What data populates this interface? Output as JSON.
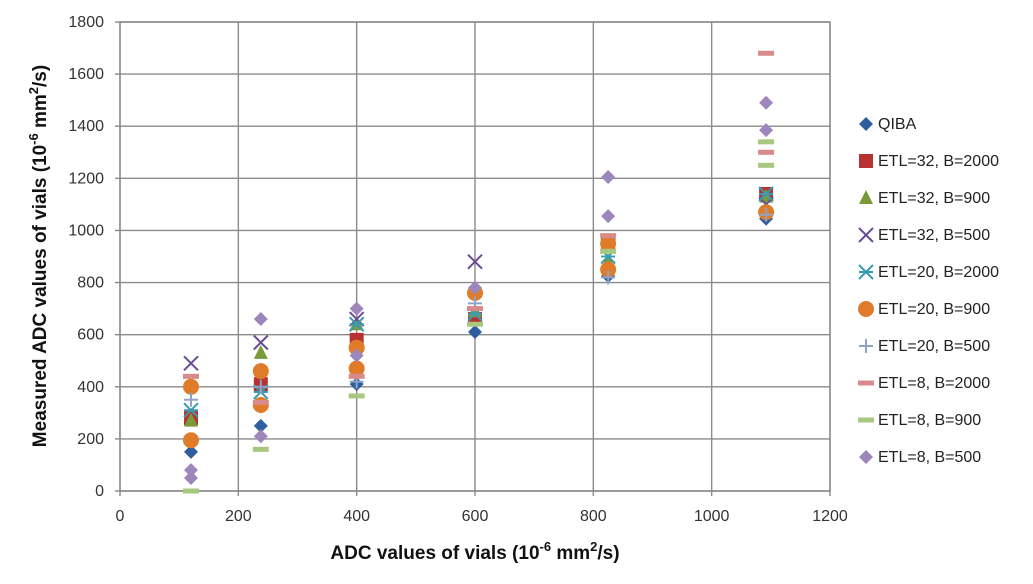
{
  "chart_data": {
    "type": "scatter",
    "xlabel": "ADC values of vials (10^-6 mm^2/s)",
    "xlabel_parts": {
      "pre": "ADC values of vials (10",
      "exp1": "-6",
      "mid": " mm",
      "exp2": "2",
      "post": "/s)"
    },
    "ylabel": "Measured ADC values of vials (10^-6 mm^2/s)",
    "ylabel_parts": {
      "pre": "Measured ADC values of vials (10",
      "exp1": "-6",
      "mid": " mm",
      "exp2": "2",
      "post": "/s)"
    },
    "xlim": [
      0,
      1200
    ],
    "ylim": [
      0,
      1800
    ],
    "xticks": [
      0,
      200,
      400,
      600,
      800,
      1000,
      1200
    ],
    "yticks": [
      0,
      200,
      400,
      600,
      800,
      1000,
      1200,
      1400,
      1600,
      1800
    ],
    "grid": true,
    "legend_position": "right",
    "series": [
      {
        "name": "QIBA",
        "marker": "diamond",
        "color": "#2E5E9E",
        "points": [
          [
            120,
            150
          ],
          [
            238,
            250
          ],
          [
            400,
            410
          ],
          [
            600,
            610
          ],
          [
            825,
            825
          ],
          [
            1092,
            1045
          ]
        ]
      },
      {
        "name": "ETL=32, B=2000",
        "marker": "square",
        "color": "#B83232",
        "points": [
          [
            120,
            280
          ],
          [
            238,
            410
          ],
          [
            400,
            580
          ],
          [
            600,
            660
          ],
          [
            825,
            950
          ],
          [
            1092,
            1140
          ]
        ]
      },
      {
        "name": "ETL=32, B=900",
        "marker": "triangle",
        "color": "#7A9A3A",
        "points": [
          [
            120,
            270
          ],
          [
            238,
            530
          ],
          [
            400,
            640
          ],
          [
            600,
            690
          ],
          [
            825,
            880
          ],
          [
            1092,
            1130
          ]
        ]
      },
      {
        "name": "ETL=32, B=500",
        "marker": "x",
        "color": "#6A4C93",
        "points": [
          [
            120,
            490
          ],
          [
            238,
            570
          ],
          [
            400,
            660
          ],
          [
            600,
            880
          ],
          [
            825,
            940
          ],
          [
            1092,
            1100
          ]
        ]
      },
      {
        "name": "ETL=20, B=2000",
        "marker": "asterisk",
        "color": "#3A9AB0",
        "points": [
          [
            120,
            310
          ],
          [
            238,
            380
          ],
          [
            400,
            640
          ],
          [
            600,
            680
          ],
          [
            825,
            900
          ],
          [
            1092,
            1140
          ]
        ]
      },
      {
        "name": "ETL=20, B=900",
        "marker": "circle",
        "color": "#E07B2A",
        "points": [
          [
            120,
            195
          ],
          [
            120,
            400
          ],
          [
            238,
            460
          ],
          [
            238,
            330
          ],
          [
            400,
            550
          ],
          [
            400,
            470
          ],
          [
            600,
            760
          ],
          [
            825,
            950
          ],
          [
            825,
            850
          ],
          [
            1092,
            1070
          ]
        ]
      },
      {
        "name": "ETL=20, B=500",
        "marker": "plus",
        "color": "#8FA3C7",
        "points": [
          [
            120,
            350
          ],
          [
            238,
            400
          ],
          [
            400,
            420
          ],
          [
            600,
            720
          ],
          [
            825,
            820
          ],
          [
            1092,
            1060
          ]
        ]
      },
      {
        "name": "ETL=8, B=2000",
        "marker": "dash",
        "color": "#D98A8A",
        "points": [
          [
            120,
            440
          ],
          [
            238,
            340
          ],
          [
            400,
            440
          ],
          [
            600,
            700
          ],
          [
            825,
            980
          ],
          [
            1092,
            1680
          ],
          [
            1092,
            1300
          ]
        ]
      },
      {
        "name": "ETL=8, B=900",
        "marker": "dash",
        "color": "#A8C880",
        "points": [
          [
            120,
            0
          ],
          [
            238,
            160
          ],
          [
            400,
            365
          ],
          [
            600,
            640
          ],
          [
            825,
            920
          ],
          [
            1092,
            1250
          ],
          [
            1092,
            1340
          ]
        ]
      },
      {
        "name": "ETL=8, B=500",
        "marker": "diamond",
        "color": "#9C86BC",
        "points": [
          [
            120,
            80
          ],
          [
            120,
            50
          ],
          [
            238,
            660
          ],
          [
            238,
            210
          ],
          [
            400,
            700
          ],
          [
            400,
            520
          ],
          [
            600,
            780
          ],
          [
            825,
            1205
          ],
          [
            825,
            1055
          ],
          [
            1092,
            1490
          ],
          [
            1092,
            1385
          ]
        ]
      }
    ]
  }
}
